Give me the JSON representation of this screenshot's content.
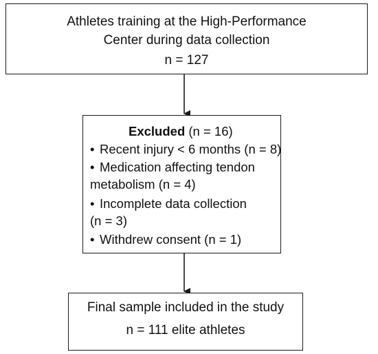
{
  "top_box": {
    "line1": "Athletes training at the High-Performance",
    "line2": "Center during data collection",
    "line3": "n = 127"
  },
  "excluded_box": {
    "title_bold": "Excluded",
    "title_count": " (n = 16)",
    "bullet_symbol": "•",
    "items": [
      {
        "line1": "Recent injury < 6 months (n = 8)"
      },
      {
        "line1": "Medication affecting tendon",
        "line2": "metabolism (n = 4)"
      },
      {
        "line1": "Incomplete data collection",
        "line2": "(n = 3)"
      },
      {
        "line1": "Withdrew consent (n = 1)"
      }
    ]
  },
  "bottom_box": {
    "line1": "Final sample included in the study",
    "line2": "n = 111 elite athletes"
  }
}
